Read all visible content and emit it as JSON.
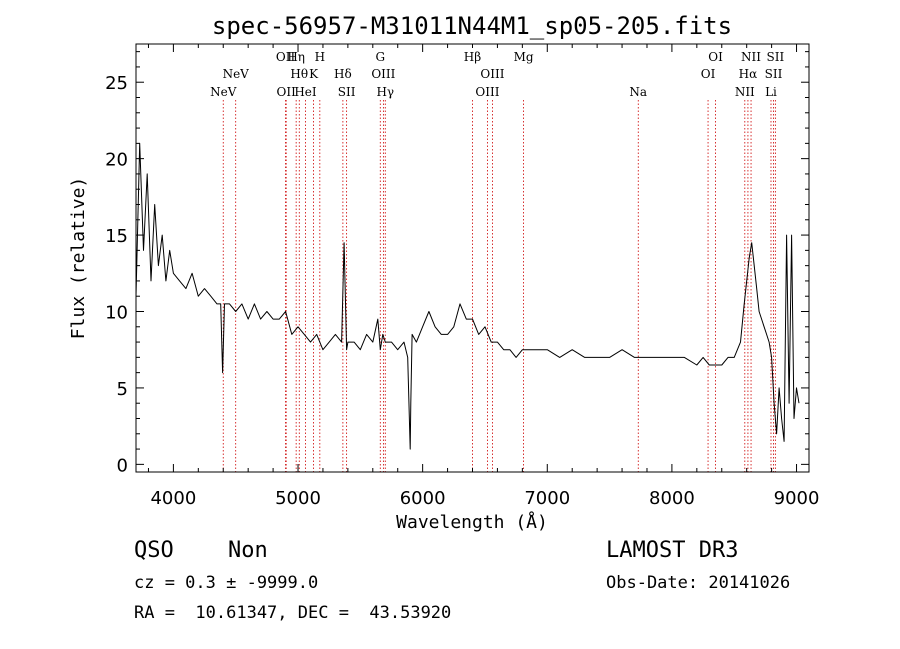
{
  "chart_data": {
    "type": "line",
    "title": "spec-56957-M31011N44M1_sp05-205.fits",
    "xlabel": "Wavelength (Å)",
    "ylabel": "Flux (relative)",
    "xlim": [
      3700,
      9100
    ],
    "ylim": [
      -0.5,
      27.5
    ],
    "x_ticks": [
      4000,
      5000,
      6000,
      7000,
      8000,
      9000
    ],
    "x_tick_labels": [
      "4000",
      "5000",
      "6000",
      "7000",
      "8000",
      "9000"
    ],
    "y_ticks": [
      0,
      5,
      10,
      15,
      20,
      25
    ],
    "y_tick_labels": [
      "0",
      "5",
      "10",
      "15",
      "20",
      "25"
    ],
    "grid": false,
    "series": [
      {
        "name": "flux",
        "color": "#000000",
        "x": [
          3700,
          3730,
          3760,
          3790,
          3820,
          3850,
          3880,
          3910,
          3940,
          3970,
          4000,
          4050,
          4100,
          4150,
          4200,
          4250,
          4300,
          4350,
          4380,
          4395,
          4410,
          4450,
          4500,
          4550,
          4600,
          4650,
          4700,
          4750,
          4800,
          4850,
          4900,
          4950,
          5000,
          5050,
          5100,
          5150,
          5200,
          5250,
          5300,
          5350,
          5370,
          5390,
          5400,
          5450,
          5500,
          5550,
          5600,
          5640,
          5660,
          5680,
          5700,
          5750,
          5800,
          5850,
          5880,
          5900,
          5905,
          5915,
          5950,
          6000,
          6050,
          6100,
          6150,
          6200,
          6250,
          6300,
          6350,
          6400,
          6450,
          6500,
          6550,
          6600,
          6650,
          6700,
          6750,
          6800,
          6900,
          7000,
          7100,
          7200,
          7300,
          7400,
          7500,
          7600,
          7700,
          7800,
          7900,
          8000,
          8100,
          8200,
          8250,
          8300,
          8350,
          8400,
          8450,
          8500,
          8550,
          8580,
          8600,
          8620,
          8640,
          8660,
          8680,
          8700,
          8720,
          8740,
          8760,
          8780,
          8800,
          8820,
          8840,
          8860,
          8880,
          8900,
          8920,
          8940,
          8960,
          8980,
          9000,
          9020
        ],
        "values": [
          11,
          21,
          14,
          19,
          12,
          17,
          13,
          15,
          12,
          14,
          12.5,
          12,
          11.5,
          12.5,
          11,
          11.5,
          11,
          10.5,
          10.5,
          6,
          10.5,
          10.5,
          10,
          10.5,
          9.5,
          10.5,
          9.5,
          10,
          9.5,
          9.5,
          10,
          8.5,
          9,
          8.5,
          8,
          8.5,
          7.5,
          8,
          8.5,
          8,
          14.5,
          7.5,
          8,
          8,
          7.5,
          8.5,
          8,
          9.5,
          7.5,
          8.5,
          8,
          8,
          7.5,
          8,
          7,
          1,
          4,
          8.5,
          8,
          9,
          10,
          9,
          8.5,
          8.5,
          9,
          10.5,
          9.5,
          9.5,
          8.5,
          9,
          8,
          8,
          7.5,
          7.5,
          7,
          7.5,
          7.5,
          7.5,
          7,
          7.5,
          7,
          7,
          7,
          7.5,
          7,
          7,
          7,
          7,
          7,
          6.5,
          7,
          6.5,
          6.5,
          6.5,
          7,
          7,
          8,
          10.5,
          12,
          13.5,
          14.5,
          13,
          11.5,
          10,
          9.5,
          9,
          8.5,
          8,
          7,
          4,
          2,
          5,
          3,
          1.5,
          15,
          4,
          15,
          3,
          5,
          4
        ]
      }
    ],
    "line_markers": [
      {
        "x": 4400,
        "label": "NeV",
        "row": 3
      },
      {
        "x": 4500,
        "label": "NeV",
        "row": 2
      },
      {
        "x": 4900,
        "label": "OII",
        "row": 1
      },
      {
        "x": 4905,
        "label": "OII",
        "row": 3
      },
      {
        "x": 4985,
        "label": "Hη",
        "row": 1
      },
      {
        "x": 5010,
        "label": "Hθ",
        "row": 2
      },
      {
        "x": 5060,
        "label": "HeI",
        "row": 3
      },
      {
        "x": 5125,
        "label": "K",
        "row": 2
      },
      {
        "x": 5175,
        "label": "H",
        "row": 1
      },
      {
        "x": 5360,
        "label": "Hδ",
        "row": 2
      },
      {
        "x": 5390,
        "label": "SII",
        "row": 3
      },
      {
        "x": 5660,
        "label": "G",
        "row": 1
      },
      {
        "x": 5685,
        "label": "OIII",
        "row": 2
      },
      {
        "x": 5700,
        "label": "Hγ",
        "row": 3
      },
      {
        "x": 6400,
        "label": "Hβ",
        "row": 1
      },
      {
        "x": 6520,
        "label": "OIII",
        "row": 3
      },
      {
        "x": 6560,
        "label": "OIII",
        "row": 2
      },
      {
        "x": 6810,
        "label": "Mg",
        "row": 1
      },
      {
        "x": 7730,
        "label": "Na",
        "row": 3
      },
      {
        "x": 8290,
        "label": "OI",
        "row": 2
      },
      {
        "x": 8350,
        "label": "OI",
        "row": 1
      },
      {
        "x": 8585,
        "label": "NII",
        "row": 3
      },
      {
        "x": 8610,
        "label": "Hα",
        "row": 2
      },
      {
        "x": 8635,
        "label": "NII",
        "row": 1
      },
      {
        "x": 8795,
        "label": "Li",
        "row": 3
      },
      {
        "x": 8815,
        "label": "SII",
        "row": 2
      },
      {
        "x": 8830,
        "label": "SII",
        "row": 1
      }
    ],
    "marker_color": "#cc0000"
  },
  "footer": {
    "class_label": "QSO",
    "subclass_label": "Non",
    "survey": "LAMOST DR3",
    "cz_line": "cz = 0.3 ± -9999.0",
    "obs_date": "Obs-Date: 20141026",
    "coords": "RA =  10.61347, DEC =  43.53920"
  }
}
